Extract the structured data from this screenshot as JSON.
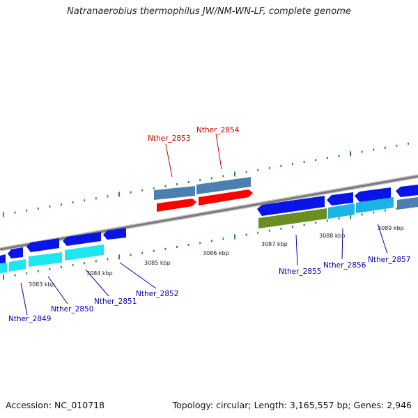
{
  "title": "Natranaerobius thermophilus JW/NM-WN-LF, complete genome",
  "footer": {
    "accession": "Accession: NC_010718",
    "stats": "Topology: circular; Length: 3,165,557 bp; Genes: 2,946"
  },
  "colors": {
    "backbone": "#8c8c8c",
    "tick": "#2e8b2e",
    "gene_label_forward": "#cc0000",
    "gene_label_reverse": "#0000aa",
    "strand_cds": "#0a14e6",
    "strand_gene_cyan": "#1ee6f0",
    "strand_gene_light": "#1ab4e6",
    "forward_gene": "#4a7fb0",
    "forward_cds": "#ff0000",
    "pseudo": "#6b8e23"
  },
  "scale_labels": [
    "3083 kbp",
    "3084 kbp",
    "3085 kbp",
    "3086 kbp",
    "3087 kbp",
    "3088 kbp",
    "3089 kbp"
  ],
  "gene_labels": {
    "forward": [
      "Nther_2853",
      "Nther_2854"
    ],
    "reverse": [
      "Nther_2849",
      "Nther_2850",
      "Nther_2851",
      "Nther_2852",
      "Nther_2855",
      "Nther_2856",
      "Nther_2857"
    ]
  }
}
